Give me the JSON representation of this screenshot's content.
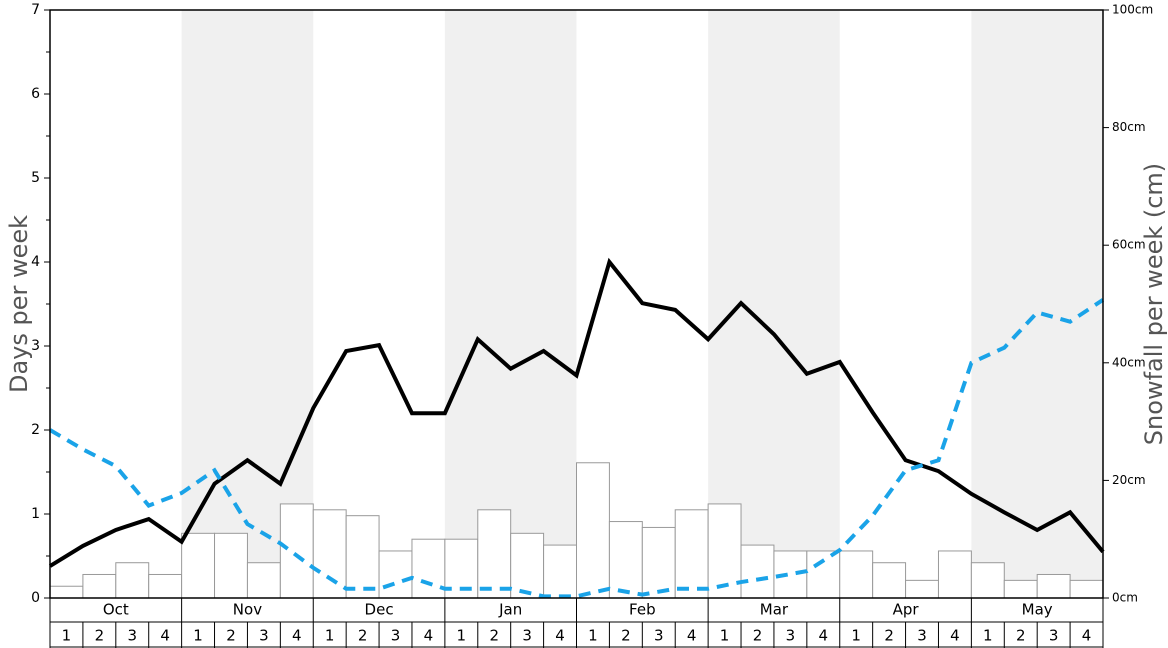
{
  "chart_data": {
    "type": "bar",
    "ylabel": "Days per week",
    "y2label": "Snowfall per week (cm)",
    "months": [
      "Oct",
      "Nov",
      "Dec",
      "Jan",
      "Feb",
      "Mar",
      "Apr",
      "May"
    ],
    "weeks": [
      1,
      2,
      3,
      4
    ],
    "ylim": [
      0,
      7
    ],
    "yticks": [
      0,
      1,
      2,
      3,
      4,
      5,
      6,
      7
    ],
    "y2lim": [
      0,
      100
    ],
    "y2ticks": [
      {
        "value": 0,
        "label": "0cm"
      },
      {
        "value": 20,
        "label": "20cm"
      },
      {
        "value": 40,
        "label": "40cm"
      },
      {
        "value": 60,
        "label": "60cm"
      },
      {
        "value": 80,
        "label": "80cm"
      },
      {
        "value": 100,
        "label": "100cm"
      }
    ],
    "series": [
      {
        "type": "bar",
        "axis": "y2",
        "color": "#ffffff",
        "values": [
          2,
          4,
          6,
          4,
          11,
          11,
          6,
          16,
          15,
          14,
          8,
          10,
          10,
          15,
          11,
          9,
          23,
          13,
          12,
          15,
          16,
          9,
          8,
          8,
          8,
          6,
          3,
          8,
          6,
          3,
          4,
          3
        ]
      },
      {
        "type": "line",
        "color": "#000000",
        "values": [
          0.38,
          0.62,
          0.81,
          0.94,
          0.67,
          1.36,
          1.64,
          1.36,
          2.26,
          2.94,
          3.01,
          2.2,
          2.2,
          3.08,
          2.73,
          2.94,
          2.65,
          4.0,
          3.51,
          3.43,
          3.08,
          3.51,
          3.14,
          2.67,
          2.81,
          2.21,
          1.64,
          1.51,
          1.24,
          1.02,
          0.81,
          1.02,
          0.55
        ]
      },
      {
        "type": "dashed",
        "color": "#1aa3e8",
        "values": [
          2.0,
          1.77,
          1.57,
          1.1,
          1.25,
          1.52,
          0.88,
          0.65,
          0.36,
          0.11,
          0.11,
          0.24,
          0.11,
          0.11,
          0.11,
          0.02,
          0.02,
          0.11,
          0.04,
          0.11,
          0.11,
          0.19,
          0.25,
          0.32,
          0.57,
          0.98,
          1.52,
          1.64,
          2.8,
          2.98,
          3.4,
          3.29,
          3.55
        ]
      }
    ]
  }
}
